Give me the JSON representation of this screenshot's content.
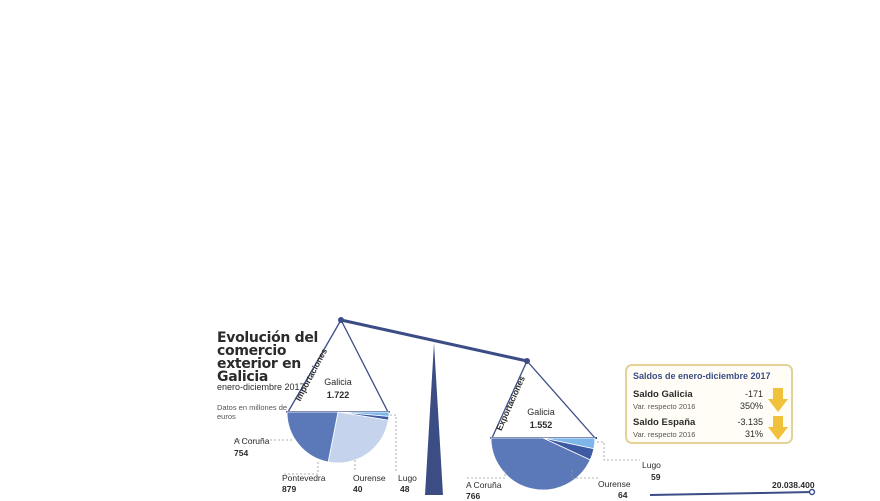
{
  "title": "Evolución del comercio exterior en Galicia",
  "subtitle": "enero-diciembre 2017",
  "note": "Datos en millones de euros",
  "chart_data": [
    {
      "type": "pie",
      "label": "Importaciones",
      "center_label": "Galicia",
      "total": "1.722",
      "categories": [
        "A Coruña",
        "Pontevedra",
        "Ourense",
        "Lugo"
      ],
      "values": [
        754,
        879,
        40,
        48
      ],
      "display_values": [
        "754",
        "879",
        "40",
        "48"
      ],
      "colors": [
        "#5b78b8",
        "#c5d4ec",
        "#3e5aa3",
        "#7eb6ea"
      ]
    },
    {
      "type": "pie",
      "label": "Exportaciones",
      "center_label": "Galicia",
      "total": "1.552",
      "categories": [
        "A Coruña",
        "Ourense",
        "Lugo"
      ],
      "values": [
        766,
        64,
        59
      ],
      "display_values": [
        "766",
        "64",
        "59"
      ],
      "colors": [
        "#5b78b8",
        "#3e5aa3",
        "#7eb6ea"
      ]
    }
  ],
  "saldos": {
    "title": "Saldos de enero-diciembre 2017",
    "rows": [
      {
        "name": "Saldo Galicia",
        "value": "-171",
        "var_label": "Var. respecto 2016",
        "var_value": "350%"
      },
      {
        "name": "Saldo España",
        "value": "-3.135",
        "var_label": "Var. respecto 2016",
        "var_value": "31%"
      }
    ],
    "arrow_color": "#f0c23c"
  },
  "series_end_value": "20.038.400",
  "colors": {
    "beam": "#3c4d86",
    "pan_dark": "#3e5aa3",
    "pan_mid": "#5b78b8",
    "pan_light": "#c5d4ec",
    "pan_sky": "#7eb6ea"
  }
}
